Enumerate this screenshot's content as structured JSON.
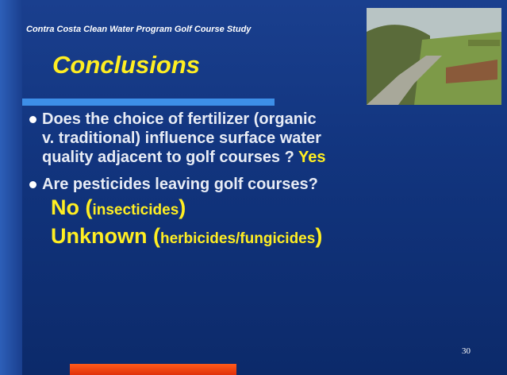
{
  "header": {
    "study": "Contra Costa Clean Water Program Golf Course Study",
    "title": "Conclusions"
  },
  "bullets": [
    {
      "lines": [
        "Does the choice of fertilizer (organic",
        "v. traditional) influence surface water",
        "quality adjacent to golf courses ?"
      ],
      "answer": "Yes"
    },
    {
      "lines": [
        "Are pesticides leaving golf courses?"
      ]
    }
  ],
  "answers": [
    {
      "lead": "No (",
      "detail": "insecticides",
      "close": ")"
    },
    {
      "lead": "Unknown (",
      "detail": "herbicides/fungicides",
      "close": ")"
    }
  ],
  "page_number": "30"
}
